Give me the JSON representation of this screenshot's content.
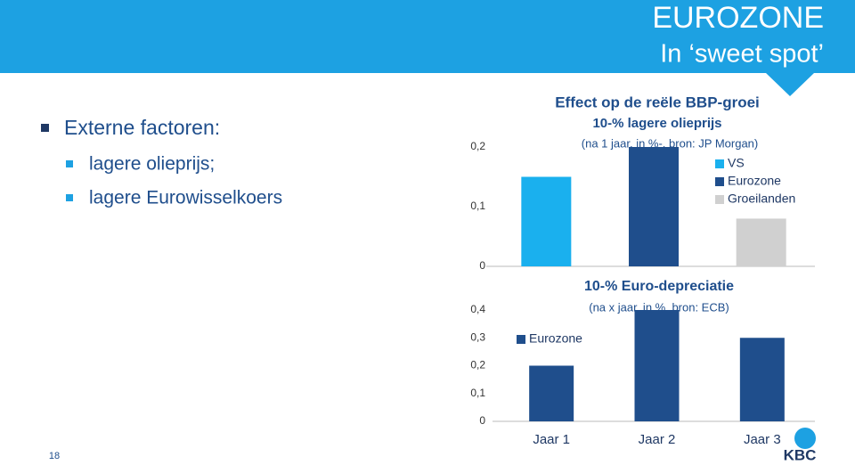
{
  "header": {
    "title": "EUROZONE",
    "subtitle": "In ‘sweet spot’"
  },
  "bullets": {
    "heading": "Externe factoren:",
    "items": [
      "lagere olieprijs;",
      "lagere Eurowisselkoers"
    ]
  },
  "chart_heading": "Effect op de reële BBP-groei",
  "chart_data": [
    {
      "type": "bar",
      "subtitle": "10-% lagere olieprijs",
      "note": "(na 1 jaar, in %-, bron: JP Morgan)",
      "categories": [
        null
      ],
      "series": [
        {
          "name": "VS",
          "color": "#1ab0ee",
          "values": [
            0.15
          ]
        },
        {
          "name": "Eurozone",
          "color": "#1f4e8c",
          "values": [
            0.2
          ]
        },
        {
          "name": "Groeilanden",
          "color": "#d0d0d0",
          "values": [
            0.08
          ]
        }
      ],
      "ylim": [
        0,
        0.2
      ],
      "yticks": [
        0,
        {
          "value": 0.1,
          "label": "0,1"
        },
        {
          "value": 0.2,
          "label": "0,2"
        }
      ],
      "grid": false
    },
    {
      "type": "bar",
      "title": "10-% Euro-depreciatie",
      "subtitle": "(na  x jaar, in %,  bron: ECB)",
      "categories": [
        "Jaar 1",
        "Jaar 2",
        "Jaar 3"
      ],
      "series": [
        {
          "name": "Eurozone",
          "color": "#1f4e8c",
          "values": [
            0.2,
            0.4,
            0.3
          ]
        }
      ],
      "ylim": [
        0,
        0.4
      ],
      "yticks": [
        0,
        {
          "value": 0.1,
          "label": "0,1"
        },
        {
          "value": 0.2,
          "label": "0,2"
        },
        {
          "value": 0.3,
          "label": "0,3"
        },
        {
          "value": 0.4,
          "label": "0,4"
        }
      ],
      "grid": false
    }
  ],
  "page_number": "18",
  "logo": "KBC"
}
